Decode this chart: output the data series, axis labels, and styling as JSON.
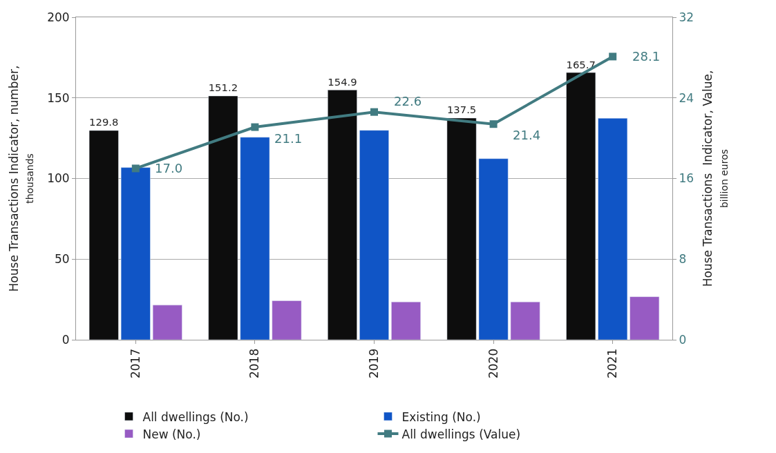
{
  "chart_data": {
    "type": "bar",
    "ylabel": "House Transactions Indicator, number,\nthousands",
    "y2label": "House Transactions  Indicator, Value,\nbillion euros",
    "categories": [
      "2017",
      "2018",
      "2019",
      "2020",
      "2021"
    ],
    "series": [
      {
        "name": "All dwellings (No.)",
        "color": "#0d0d0d",
        "values": [
          129.8,
          151.2,
          154.9,
          137.5,
          165.7
        ],
        "value_labels": [
          "129.8",
          "151.2",
          "154.9",
          "137.5",
          "165.7"
        ]
      },
      {
        "name": "Existing (No.)",
        "color": "#1055c6",
        "values": [
          106.8,
          125.6,
          129.9,
          112.3,
          137.4
        ]
      },
      {
        "name": "New (No.)",
        "color": "#975bc3",
        "values": [
          21.5,
          24.2,
          23.5,
          23.5,
          26.7
        ]
      },
      {
        "name": "All dwellings (Value)",
        "type": "line",
        "axis": "y2",
        "color": "#417b81",
        "marker": "square",
        "values": [
          17.0,
          21.1,
          22.6,
          21.4,
          28.1
        ],
        "value_labels": [
          "17.0",
          "21.1",
          "22.6",
          "21.4",
          "28.1"
        ]
      }
    ],
    "ylim": [
      0,
      200
    ],
    "yticks": [
      0,
      50,
      100,
      150,
      200
    ],
    "y2lim": [
      0,
      32
    ],
    "y2ticks": [
      0,
      8,
      16,
      24,
      32
    ],
    "grid": "y",
    "legend": "bottom"
  }
}
